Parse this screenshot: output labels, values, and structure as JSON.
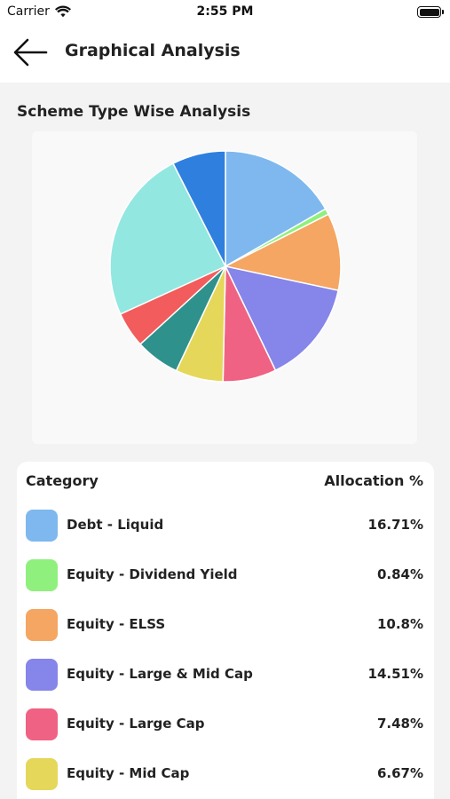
{
  "status": {
    "carrier": "Carrier",
    "time": "2:55 PM"
  },
  "header": {
    "title": "Graphical Analysis"
  },
  "section": {
    "title": "Scheme Type Wise Analysis"
  },
  "table": {
    "col_category": "Category",
    "col_allocation": "Allocation %"
  },
  "chart_data": {
    "type": "pie",
    "title": "",
    "slices": [
      {
        "label": "Debt - Liquid",
        "value": 16.71,
        "display": "16.71%",
        "color": "#7eb8ee"
      },
      {
        "label": "Equity - Dividend Yield",
        "value": 0.84,
        "display": "0.84%",
        "color": "#8ff07e"
      },
      {
        "label": "Equity - ELSS",
        "value": 10.8,
        "display": "10.8%",
        "color": "#f5a662"
      },
      {
        "label": "Equity - Large & Mid Cap",
        "value": 14.51,
        "display": "14.51%",
        "color": "#8585ea"
      },
      {
        "label": "Equity - Large Cap",
        "value": 7.48,
        "display": "7.48%",
        "color": "#f06283"
      },
      {
        "label": "Equity - Mid Cap",
        "value": 6.67,
        "display": "6.67%",
        "color": "#e5d75a"
      },
      {
        "label": "",
        "value": 6.2,
        "display": "",
        "color": "#2f918b"
      },
      {
        "label": "",
        "value": 5.0,
        "display": "",
        "color": "#f25c5c"
      },
      {
        "label": "",
        "value": 24.3,
        "display": "",
        "color": "#92e7e0"
      },
      {
        "label": "",
        "value": 7.49,
        "display": "",
        "color": "#2f7fde"
      }
    ]
  }
}
